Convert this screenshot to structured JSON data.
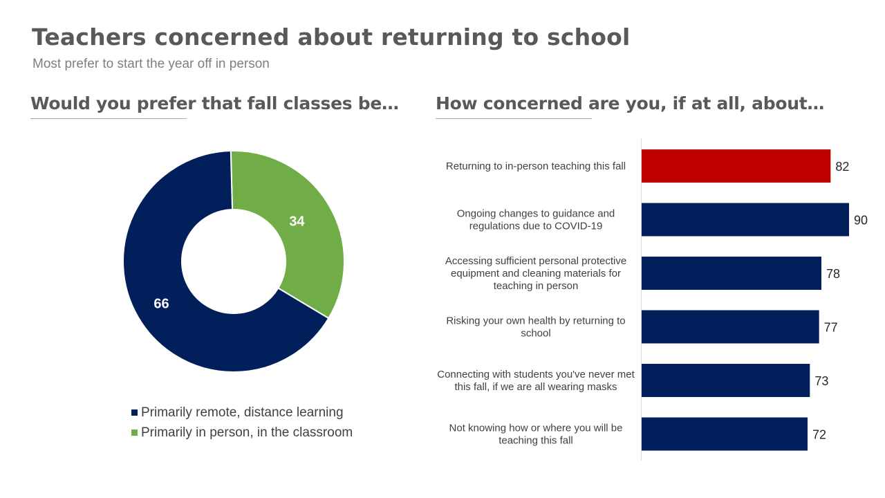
{
  "page": {
    "title": "Teachers concerned about returning to school",
    "subtitle": "Most prefer to start the year off in person"
  },
  "colors": {
    "navy": "#001f5b",
    "green": "#70ad47",
    "red": "#c00000",
    "heading_gray": "#595959",
    "subtitle_gray": "#7f7f7f",
    "text_gray": "#404040"
  },
  "chart_data": [
    {
      "type": "pie",
      "title": "Would you prefer that fall classes be…",
      "legend_position": "bottom",
      "slices": [
        {
          "label": "Primarily in person, in the classroom",
          "value": 34,
          "color": "#70ad47"
        },
        {
          "label": "Primarily remote, distance learning",
          "value": 66,
          "color": "#001f5b"
        }
      ],
      "legend": [
        {
          "label": "Primarily remote, distance learning",
          "color": "#001f5b"
        },
        {
          "label": "Primarily in person, in the classroom",
          "color": "#70ad47"
        }
      ]
    },
    {
      "type": "bar",
      "orientation": "horizontal",
      "title": "How concerned are you, if at all, about…",
      "xlim": [
        0,
        100
      ],
      "grid": false,
      "categories": [
        "Returning to in-person teaching this fall",
        "Ongoing changes to guidance and regulations due to COVID-19",
        "Accessing sufficient personal protective equipment and cleaning materials for teaching in person",
        "Risking your own health by returning to school",
        "Connecting with students you've never met this fall, if we are all wearing masks",
        "Not knowing how or where you will be teaching this fall"
      ],
      "category_lines": [
        [
          "Returning to in-person teaching this fall"
        ],
        [
          "Ongoing changes to guidance and",
          "regulations due to COVID-19"
        ],
        [
          "Accessing sufficient personal protective",
          "equipment and cleaning materials for",
          "teaching in person"
        ],
        [
          "Risking your own health by returning to",
          "school"
        ],
        [
          "Connecting with students you've never met",
          "this fall, if we are all wearing masks"
        ],
        [
          "Not knowing how or where you will be",
          "teaching this fall"
        ]
      ],
      "values": [
        82,
        90,
        78,
        77,
        73,
        72
      ],
      "bar_colors": [
        "#c00000",
        "#001f5b",
        "#001f5b",
        "#001f5b",
        "#001f5b",
        "#001f5b"
      ]
    }
  ]
}
